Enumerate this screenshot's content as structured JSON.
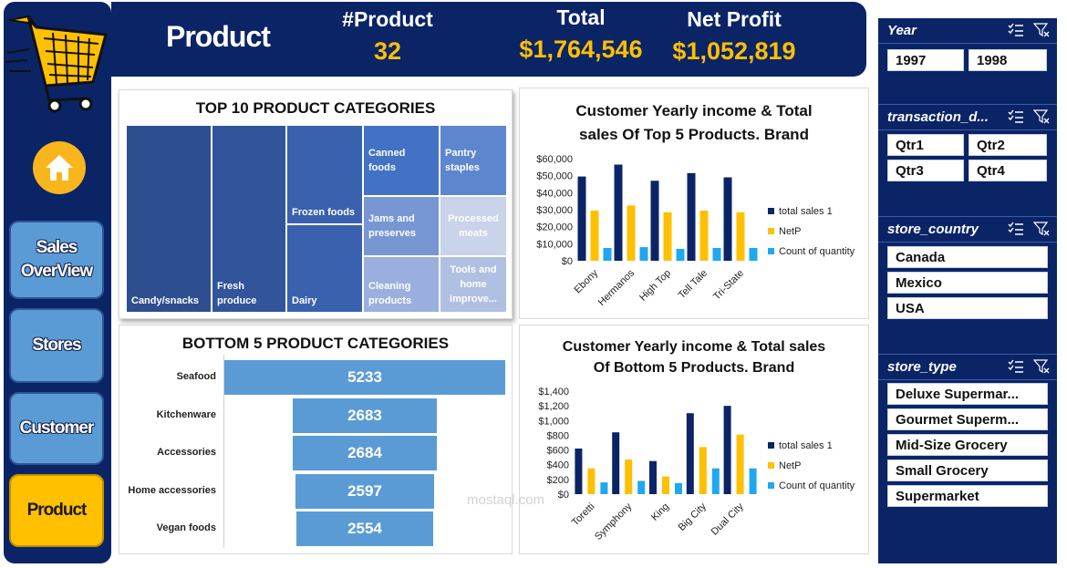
{
  "nav": {
    "items": [
      {
        "label": "Sales OverView"
      },
      {
        "label": "Stores"
      },
      {
        "label": "Customer"
      },
      {
        "label": "Product"
      }
    ]
  },
  "header": {
    "title": "Product",
    "kpis": [
      {
        "label": "#Product",
        "value": "32"
      },
      {
        "label": "Total",
        "value": "$1,764,546"
      },
      {
        "label": "Net Profit",
        "value": "$1,052,819"
      }
    ]
  },
  "slicers": {
    "year": {
      "title": "Year",
      "items": [
        "1997",
        "1998"
      ]
    },
    "transaction": {
      "title": "transaction_d...",
      "items": [
        "Qtr1",
        "Qtr2",
        "Qtr3",
        "Qtr4"
      ]
    },
    "store_country": {
      "title": "store_country",
      "items": [
        "Canada",
        "Mexico",
        "USA"
      ]
    },
    "store_type": {
      "title": "store_type",
      "items": [
        "Deluxe Supermar...",
        "Gourmet Superm...",
        "Mid-Size Grocery",
        "Small Grocery",
        "Supermarket"
      ]
    }
  },
  "treemap": {
    "title": "TOP 10 PRODUCT CATEGORIES",
    "cells": [
      {
        "label": "Candy/snacks",
        "color": "#2e4f8f"
      },
      {
        "label": "Fresh produce",
        "color": "#31549a"
      },
      {
        "label": "Frozen foods",
        "color": "#3a61ad"
      },
      {
        "label": "Dairy",
        "color": "#3a61ad"
      },
      {
        "label": "Canned foods",
        "color": "#4372c4"
      },
      {
        "label": "Pantry staples",
        "color": "#5d86cf"
      },
      {
        "label": "Jams and preserves",
        "color": "#7896d4"
      },
      {
        "label": "Processed meats",
        "color": "#c9d3ea"
      },
      {
        "label": "Cleaning products",
        "color": "#9aafdd"
      },
      {
        "label": "Tools and home improve...",
        "color": "#b0c0e3"
      }
    ]
  },
  "bottom5": {
    "title": "BOTTOM 5 PRODUCT CATEGORIES",
    "rows": [
      {
        "label": "Seafood",
        "value": "5233"
      },
      {
        "label": "Kitchenware",
        "value": "2683"
      },
      {
        "label": "Accessories",
        "value": "2684"
      },
      {
        "label": "Home accessories",
        "value": "2597"
      },
      {
        "label": "Vegan foods",
        "value": "2554"
      }
    ]
  },
  "chart_data": [
    {
      "type": "bar",
      "title": "Customer Yearly income & Total sales Of Top 5 Products. Brand",
      "categories": [
        "Ebony",
        "Hermanos",
        "High Top",
        "Tell Tale",
        "Tri-State"
      ],
      "series": [
        {
          "name": "total sales 1",
          "color": "#0b2466",
          "values": [
            49500,
            56500,
            47000,
            51500,
            49000
          ]
        },
        {
          "name": "NetP",
          "color": "#ffc000",
          "values": [
            29500,
            32500,
            28500,
            29500,
            28500
          ]
        },
        {
          "name": "Count of quantity",
          "color": "#1fa8f0",
          "values": [
            7500,
            8000,
            7000,
            7500,
            7500
          ]
        }
      ],
      "yticks": [
        "$0",
        "$10,000",
        "$20,000",
        "$30,000",
        "$40,000",
        "$50,000",
        "$60,000"
      ],
      "ylim": [
        0,
        60000
      ],
      "legend": "right"
    },
    {
      "type": "bar",
      "title": "Customer Yearly income & Total sales Of Bottom 5 Products. Brand",
      "categories": [
        "Toretti",
        "Symphony",
        "King",
        "Big City",
        "Dual City"
      ],
      "series": [
        {
          "name": "total sales 1",
          "color": "#0b2466",
          "values": [
            620,
            840,
            450,
            1100,
            1200
          ]
        },
        {
          "name": "NetP",
          "color": "#ffc000",
          "values": [
            350,
            470,
            240,
            640,
            810
          ]
        },
        {
          "name": "Count of quantity",
          "color": "#1fa8f0",
          "values": [
            160,
            180,
            150,
            350,
            350
          ]
        }
      ],
      "yticks": [
        "$0",
        "$200",
        "$400",
        "$600",
        "$800",
        "$1,000",
        "$1,200",
        "$1,400"
      ],
      "ylim": [
        0,
        1400
      ],
      "legend": "right"
    }
  ],
  "chart_titles": {
    "top": [
      "Customer Yearly income & Total",
      "sales Of Top 5 Products. Brand"
    ],
    "bottom": [
      "Customer Yearly income & Total sales",
      "Of Bottom 5 Products. Brand"
    ]
  },
  "watermark": "mostaql.com"
}
